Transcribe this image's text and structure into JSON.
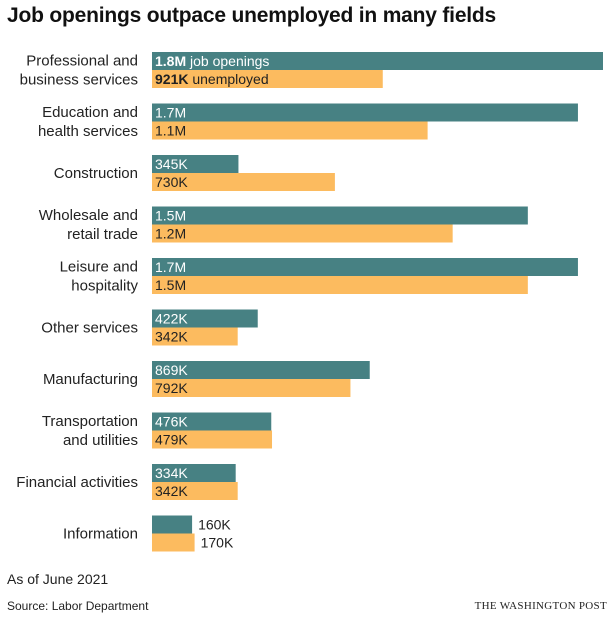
{
  "header": {
    "title": "Job openings outpace unemployed in many fields"
  },
  "footer": {
    "note": "As of June 2021",
    "source": "Source: Labor Department",
    "brand": "THE WASHINGTON POST"
  },
  "colors": {
    "openings": "#478183",
    "unemployed": "#fcbb5f",
    "label_on_bar": "#ffffff",
    "label_off_bar": "#222222"
  },
  "chart_data": {
    "type": "bar",
    "orientation": "horizontal",
    "categories": [
      [
        "Professional and",
        "business services"
      ],
      [
        "Education and",
        "health services"
      ],
      [
        "Construction"
      ],
      [
        "Wholesale and",
        "retail trade"
      ],
      [
        "Leisure and",
        "hospitality"
      ],
      [
        "Other services"
      ],
      [
        "Manufacturing"
      ],
      [
        "Transportation",
        "and utilities"
      ],
      [
        "Financial activities"
      ],
      [
        "Information"
      ]
    ],
    "series": [
      {
        "name": "job openings",
        "values": [
          1800,
          1700,
          345,
          1500,
          1700,
          422,
          869,
          476,
          334,
          160
        ],
        "labels": [
          "1.8M",
          "1.7M",
          "345K",
          "1.5M",
          "1.7M",
          "422K",
          "869K",
          "476K",
          "334K",
          "160K"
        ]
      },
      {
        "name": "unemployed",
        "values": [
          921,
          1100,
          730,
          1200,
          1500,
          342,
          792,
          479,
          342,
          170
        ],
        "labels": [
          "921K",
          "1.1M",
          "730K",
          "1.2M",
          "1.5M",
          "342K",
          "792K",
          "479K",
          "342K",
          "170K"
        ]
      }
    ],
    "value_unit": "thousands",
    "xlim": [
      0,
      1800
    ],
    "legend": "inline-first-row"
  }
}
